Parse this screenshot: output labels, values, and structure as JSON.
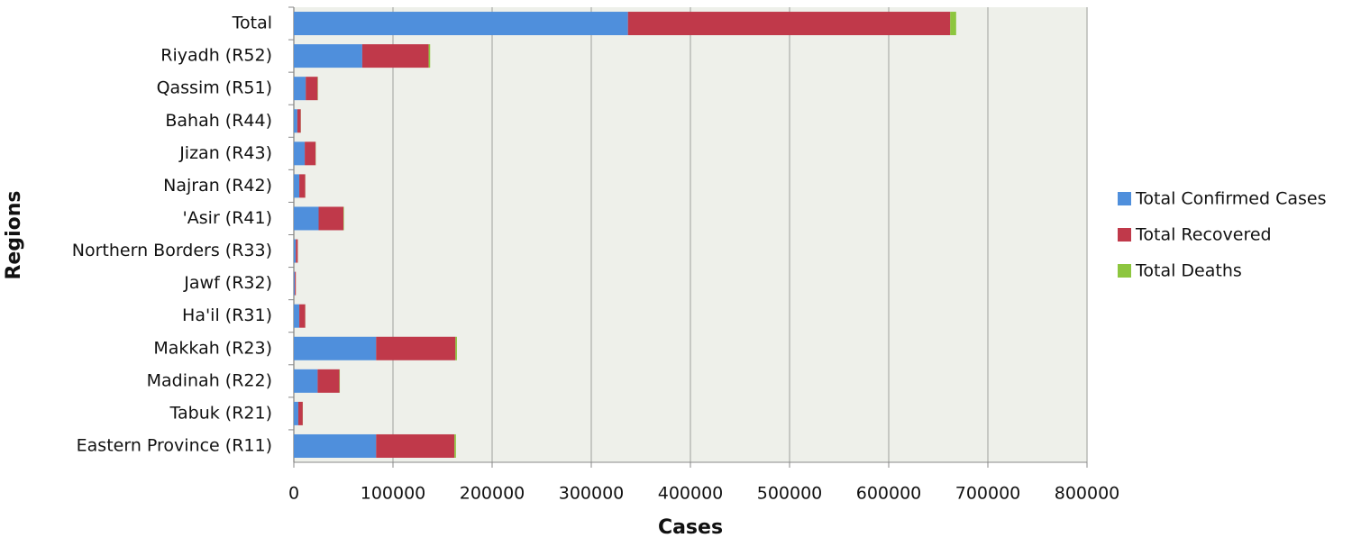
{
  "chart_data": {
    "type": "stacked-bar-horizontal",
    "x_label": "Cases",
    "y_label": "Regions",
    "categories": [
      "Total",
      "Riyadh (R52)",
      "Qassim (R51)",
      "Bahah (R44)",
      "Jizan (R43)",
      "Najran (R42)",
      "'Asir (R41)",
      "Northern Borders (R33)",
      "Jawf (R32)",
      "Ha'il (R31)",
      "Makkah (R23)",
      "Madinah (R22)",
      "Tabuk (R21)",
      "Eastern Province (R11)"
    ],
    "series": [
      {
        "name": "Total Confirmed Cases",
        "color": "#4f8fdc",
        "values": [
          337000,
          69000,
          12000,
          3500,
          11000,
          5500,
          25000,
          2000,
          1000,
          5500,
          83000,
          24000,
          4500,
          83000
        ]
      },
      {
        "name": "Total Recovered",
        "color": "#c0394a",
        "values": [
          325000,
          67000,
          12000,
          3500,
          11000,
          6000,
          25000,
          2000,
          1000,
          6000,
          80000,
          22000,
          4500,
          79000
        ]
      },
      {
        "name": "Total Deaths",
        "color": "#8dc63f",
        "values": [
          6000,
          1500,
          300,
          100,
          200,
          100,
          500,
          50,
          30,
          100,
          1500,
          400,
          100,
          1500
        ]
      }
    ],
    "xlim": [
      0,
      800000
    ],
    "xticks": [
      0,
      100000,
      200000,
      300000,
      400000,
      500000,
      600000,
      700000,
      800000
    ],
    "grid": true,
    "legend": "right"
  }
}
